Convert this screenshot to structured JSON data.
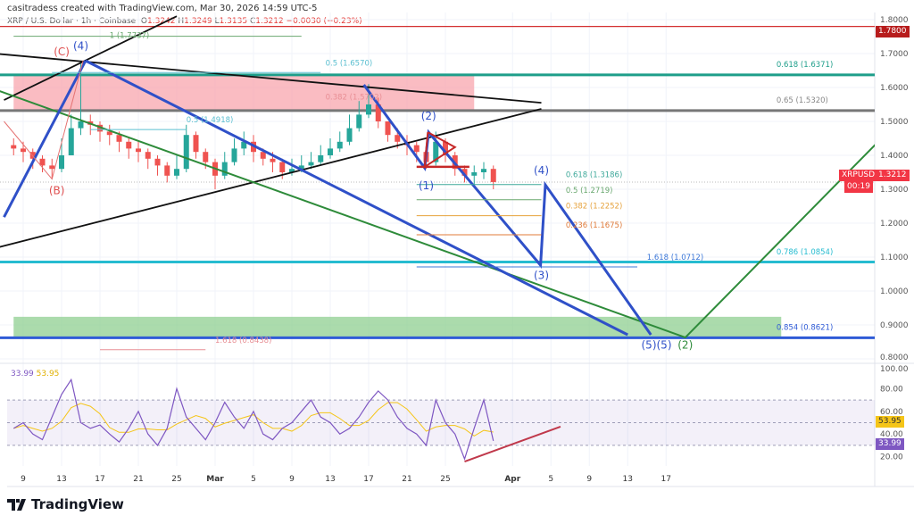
{
  "header": {
    "attribution": "casitradess created with TradingView.com, Mar 30, 2026 14:59 UTC-5"
  },
  "legend": {
    "symbol": "XRP / U.S. Dollar · 1h · Coinbase",
    "o_label": "O",
    "o": "1.3242",
    "h_label": "H",
    "h": "1.3249",
    "l_label": "L",
    "l": "1.3135",
    "c_label": "C",
    "c": "1.3212",
    "change": "−0.0030 (−0.23%)"
  },
  "price_tag": {
    "symbol": "XRPUSD",
    "price": "1.3212",
    "countdown": "00:19",
    "color": "#f23645"
  },
  "top_level_tag": "1.7800",
  "rsi": {
    "value": "33.99",
    "ma": "53.95",
    "rsi_color": "#7e57c2",
    "ma_color": "#f5c518"
  },
  "footer": {
    "brand": "TradingView"
  },
  "chart_data": {
    "type": "candlestick",
    "ylim": [
      0.8,
      1.8
    ],
    "y_ticks": [
      "1.8000",
      "1.7000",
      "1.6000",
      "1.5000",
      "1.4000",
      "1.3000",
      "1.2000",
      "1.1000",
      "1.0000",
      "0.9000",
      "0.8000"
    ],
    "x_ticks": [
      [
        "2026-02-09",
        "9"
      ],
      [
        "2026-02-13",
        "13"
      ],
      [
        "2026-02-17",
        "17"
      ],
      [
        "2026-02-21",
        "21"
      ],
      [
        "2026-02-25",
        "25"
      ],
      [
        "2026-03-01",
        "Mar"
      ],
      [
        "2026-03-05",
        "5"
      ],
      [
        "2026-03-09",
        "9"
      ],
      [
        "2026-03-13",
        "13"
      ],
      [
        "2026-03-17",
        "17"
      ],
      [
        "2026-03-21",
        "21"
      ],
      [
        "2026-03-25",
        "25"
      ],
      [
        "2026-04-01",
        "Apr"
      ],
      [
        "2026-04-05",
        "5"
      ],
      [
        "2026-04-09",
        "9"
      ],
      [
        "2026-04-13",
        "13"
      ],
      [
        "2026-04-17",
        "17"
      ]
    ],
    "start_date": "2026-02-08",
    "close": [
      1.42,
      1.41,
      1.39,
      1.37,
      1.36,
      1.4,
      1.48,
      1.5,
      1.49,
      1.47,
      1.46,
      1.44,
      1.42,
      1.41,
      1.39,
      1.37,
      1.34,
      1.36,
      1.46,
      1.41,
      1.38,
      1.34,
      1.38,
      1.42,
      1.44,
      1.41,
      1.39,
      1.38,
      1.35,
      1.36,
      1.37,
      1.38,
      1.4,
      1.42,
      1.44,
      1.48,
      1.52,
      1.55,
      1.5,
      1.46,
      1.44,
      1.43,
      1.41,
      1.38,
      1.44,
      1.4,
      1.36,
      1.34,
      1.35,
      1.36,
      1.3212
    ],
    "high": [
      1.45,
      1.44,
      1.42,
      1.4,
      1.39,
      1.45,
      1.52,
      1.67,
      1.52,
      1.5,
      1.49,
      1.47,
      1.45,
      1.44,
      1.42,
      1.4,
      1.38,
      1.4,
      1.49,
      1.47,
      1.42,
      1.39,
      1.41,
      1.45,
      1.47,
      1.46,
      1.42,
      1.41,
      1.39,
      1.39,
      1.4,
      1.41,
      1.43,
      1.45,
      1.47,
      1.52,
      1.56,
      1.61,
      1.57,
      1.5,
      1.48,
      1.46,
      1.44,
      1.42,
      1.47,
      1.45,
      1.41,
      1.37,
      1.37,
      1.38,
      1.37
    ],
    "low": [
      1.4,
      1.38,
      1.36,
      1.35,
      1.33,
      1.35,
      1.4,
      1.46,
      1.46,
      1.44,
      1.43,
      1.41,
      1.39,
      1.38,
      1.36,
      1.34,
      1.32,
      1.33,
      1.35,
      1.39,
      1.36,
      1.3,
      1.33,
      1.37,
      1.4,
      1.38,
      1.37,
      1.35,
      1.33,
      1.34,
      1.35,
      1.36,
      1.37,
      1.39,
      1.41,
      1.43,
      1.47,
      1.51,
      1.48,
      1.44,
      1.42,
      1.4,
      1.38,
      1.36,
      1.37,
      1.38,
      1.34,
      1.32,
      1.31,
      1.33,
      1.3
    ],
    "rsi_series": [
      45,
      50,
      40,
      35,
      55,
      75,
      88,
      50,
      45,
      48,
      40,
      33,
      45,
      60,
      40,
      30,
      45,
      80,
      55,
      45,
      35,
      50,
      68,
      55,
      45,
      60,
      40,
      35,
      45,
      50,
      60,
      70,
      55,
      50,
      40,
      45,
      55,
      68,
      78,
      70,
      55,
      45,
      40,
      30,
      70,
      50,
      40,
      18,
      45,
      70,
      33.99
    ],
    "rsi_ticks": [
      "100.00",
      "80.00",
      "60.00",
      "40.00",
      "20.00"
    ],
    "rsi_band": [
      30,
      70
    ],
    "hlines": [
      {
        "price": 1.78,
        "color": "#d32f2f",
        "width": 1.2
      },
      {
        "price": 1.6371,
        "color": "#1e9e8a",
        "width": 3
      },
      {
        "price": 1.532,
        "color": "#777777",
        "width": 3
      },
      {
        "price": 1.0854,
        "color": "#26bcd0",
        "width": 3
      },
      {
        "price": 0.8621,
        "color": "#2f5bd6",
        "width": 3
      }
    ],
    "zones": [
      {
        "from": "2026-02-08",
        "to": "2026-03-28",
        "top": 1.6371,
        "bottom": 1.532,
        "color": "#f8a5ad"
      },
      {
        "from": "2026-02-08",
        "to": "2026-04-29",
        "top": 0.924,
        "bottom": 0.8621,
        "color": "#8fcf90"
      }
    ],
    "trendlines": [
      {
        "p": [
          [
            "2026-02-06",
            1.7
          ],
          [
            "2026-04-04",
            1.555
          ]
        ],
        "color": "#111111",
        "width": 1.8
      },
      {
        "p": [
          [
            "2026-02-06",
            1.126
          ],
          [
            "2026-04-04",
            1.537
          ]
        ],
        "color": "#111111",
        "width": 1.8
      },
      {
        "p": [
          [
            "2026-02-07",
            1.563
          ],
          [
            "2026-02-25",
            1.81
          ]
        ],
        "color": "#111111",
        "width": 1.8
      },
      {
        "p": [
          [
            "2026-02-06",
            1.595
          ],
          [
            "2026-04-19",
            0.863
          ],
          [
            "2026-05-09",
            1.437
          ]
        ],
        "color": "#2e8b3a",
        "width": 2
      },
      {
        "p": [
          [
            "2026-02-07",
            1.218
          ],
          [
            "2026-02-15T12:00",
            1.679
          ]
        ],
        "color": "#2f50c8",
        "width": 3
      },
      {
        "p": [
          [
            "2026-02-15T12:00",
            1.679
          ],
          [
            "2026-04-13",
            0.871
          ]
        ],
        "color": "#2f50c8",
        "width": 3
      },
      {
        "p": [
          [
            "2026-03-16T12:00",
            1.608
          ],
          [
            "2026-03-22T20:00",
            1.363
          ],
          [
            "2026-03-23T06:00",
            1.468
          ],
          [
            "2026-04-03T22:00",
            1.076
          ],
          [
            "2026-04-04T10:00",
            1.313
          ],
          [
            "2026-04-15T10:00",
            0.871
          ]
        ],
        "color": "#2f50c8",
        "width": 3
      },
      {
        "p": [
          [
            "2026-02-07",
            1.5
          ],
          [
            "2026-02-12",
            1.33
          ],
          [
            "2026-02-15T06:00",
            1.68
          ]
        ],
        "color": "#e57373",
        "width": 1
      },
      {
        "p": [
          [
            "2026-03-23T04:00",
            1.468
          ],
          [
            "2026-03-26",
            1.424
          ],
          [
            "2026-03-22T20:00",
            1.366
          ],
          [
            "2026-03-23T04:00",
            1.468
          ]
        ],
        "color": "#c62828",
        "width": 2
      },
      {
        "p": [
          [
            "2026-03-22",
            1.366
          ],
          [
            "2026-03-27T12:00",
            1.366
          ]
        ],
        "color": "#c62828",
        "width": 2.5
      }
    ],
    "rsi_trendline": [
      [
        "2026-03-27",
        15.7
      ],
      [
        "2026-04-06",
        46.5
      ]
    ],
    "fib_labels": [
      {
        "text": "1 (1.7737)",
        "date": "2026-02-18",
        "price": 1.772,
        "color": "#6aa86f",
        "line_from": "2026-02-08",
        "line_to": "2026-03-10"
      },
      {
        "text": "0.5 (1.6570)",
        "date": "2026-03-12T12:00",
        "price": 1.665,
        "color": "#5bbfd0",
        "line_from": "2026-02-12",
        "line_to": "2026-03-12"
      },
      {
        "text": "0.382 (1.5702)",
        "date": "2026-03-12T12:00",
        "price": 1.565,
        "color": "#e88f95"
      },
      {
        "text": "0.5 (1.4918)",
        "date": "2026-02-26",
        "price": 1.497,
        "color": "#5bbfd0",
        "line_from": "2026-02-16",
        "line_to": "2026-02-26"
      },
      {
        "text": "0.618 (1.3186)",
        "date": "2026-04-04T12:00",
        "price": 1.335,
        "color": "#3ea89a",
        "line_from": "2026-03-22",
        "line_to": "2026-04-04"
      },
      {
        "text": "0.5 (1.2719)",
        "date": "2026-04-04T12:00",
        "price": 1.29,
        "color": "#6aa86f",
        "line_from": "2026-03-22",
        "line_to": "2026-04-04"
      },
      {
        "text": "0.382 (1.2252)",
        "date": "2026-04-04T12:00",
        "price": 1.243,
        "color": "#e6a23c",
        "line_from": "2026-03-22",
        "line_to": "2026-04-04"
      },
      {
        "text": "0.236 (1.1675)",
        "date": "2026-04-04T12:00",
        "price": 1.187,
        "color": "#e07b39",
        "line_from": "2026-03-22",
        "line_to": "2026-04-04"
      },
      {
        "text": "1.618 (1.0712)",
        "date": "2026-04-15",
        "price": 1.092,
        "color": "#3c78d8",
        "line_from": "2026-03-22",
        "line_to": "2026-04-14"
      },
      {
        "text": "1.618 (0.8438)",
        "date": "2026-03-01",
        "price": 0.848,
        "color": "#e88f95",
        "line_from": "2026-02-17",
        "line_to": "2026-02-28"
      },
      {
        "text": "0.618 (1.6371)",
        "date": "2026-04-28T12:00",
        "price": 1.66,
        "color": "#1e9e8a"
      },
      {
        "text": "0.65 (1.5320)",
        "date": "2026-04-28T12:00",
        "price": 1.555,
        "color": "#888888"
      },
      {
        "text": "0.786 (1.0854)",
        "date": "2026-04-28T12:00",
        "price": 1.108,
        "color": "#26bcd0"
      },
      {
        "text": "0.854 (0.8621)",
        "date": "2026-04-28T12:00",
        "price": 0.885,
        "color": "#2f5bd6",
        "line_from": "2026-04-28",
        "line_to": "2026-05-08"
      }
    ],
    "wave_labels": [
      {
        "text": "(4)",
        "date": "2026-02-15",
        "price": 1.712,
        "color": "#2f50c8"
      },
      {
        "text": "(C)",
        "date": "2026-02-14T12:00",
        "price": 1.695,
        "color": "#e05050"
      },
      {
        "text": "(B)",
        "date": "2026-02-12T12:00",
        "price": 1.285,
        "color": "#e05050"
      },
      {
        "text": "(1)",
        "date": "2026-03-23",
        "price": 1.3,
        "color": "#2f50c8"
      },
      {
        "text": "(2)",
        "date": "2026-03-23T06:00",
        "price": 1.505,
        "color": "#2f50c8"
      },
      {
        "text": "(4)",
        "date": "2026-04-04",
        "price": 1.345,
        "color": "#2f50c8"
      },
      {
        "text": "(3)",
        "date": "2026-04-04",
        "price": 1.035,
        "color": "#2f50c8"
      },
      {
        "text": "(5)(5)",
        "date": "2026-04-16",
        "price": 0.83,
        "color": "#2f50c8"
      },
      {
        "text": "(2)",
        "date": "2026-04-19",
        "price": 0.83,
        "color": "#2e8b3a"
      }
    ]
  }
}
